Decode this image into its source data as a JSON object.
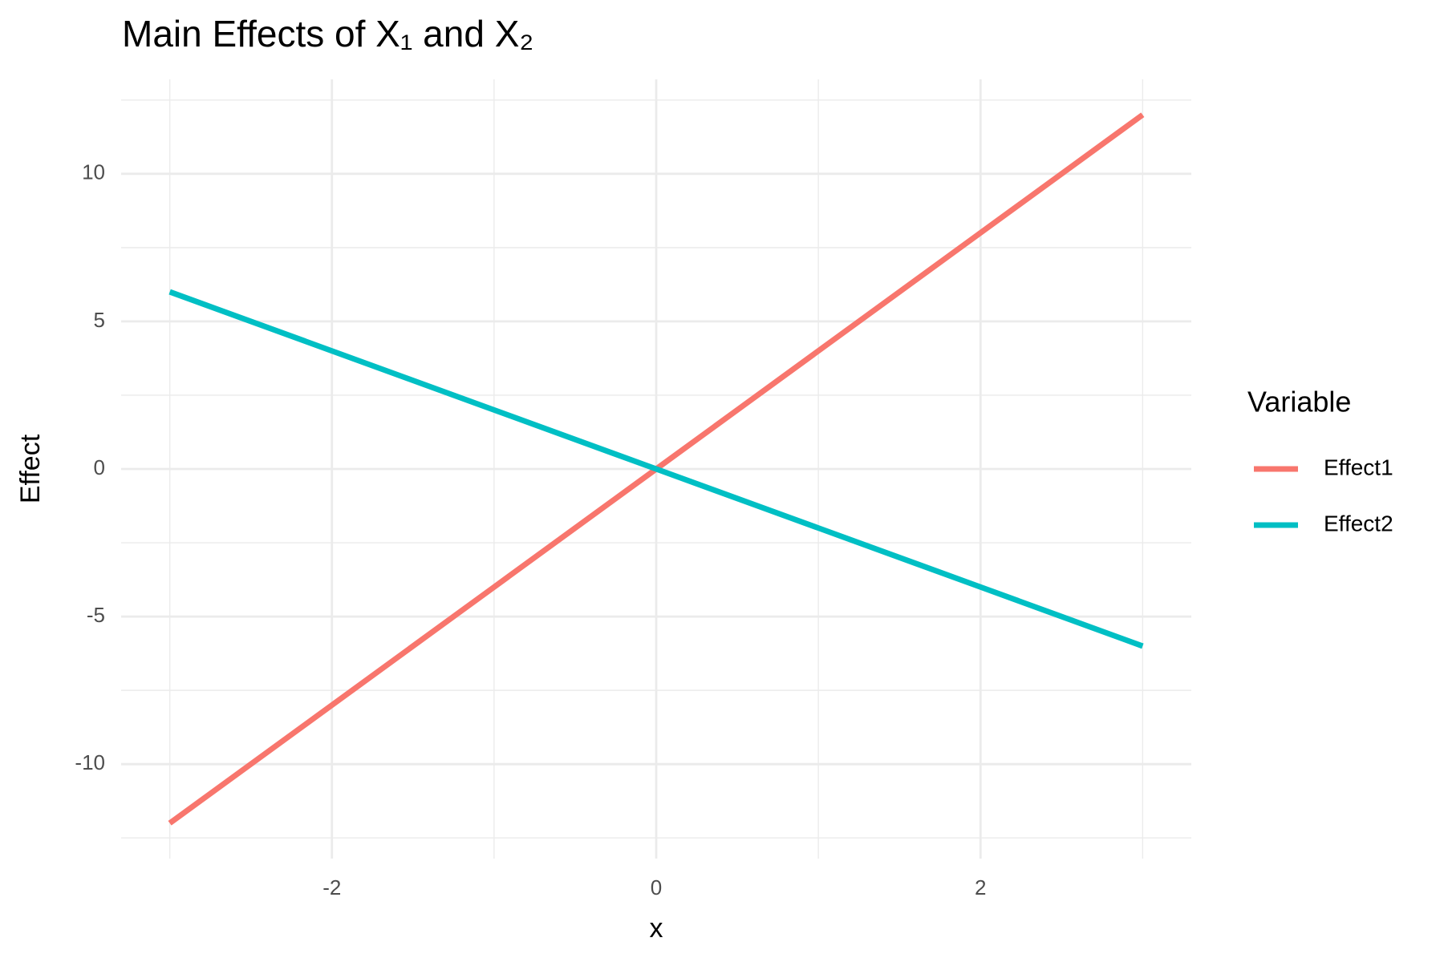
{
  "chart_data": {
    "type": "line",
    "title": "Main Effects of X₁ and X₂",
    "x_label": "x",
    "y_label": "Effect",
    "x": [
      -3,
      -2,
      -1,
      0,
      1,
      2,
      3
    ],
    "series": [
      {
        "name": "Effect1",
        "color": "#F8766D",
        "values": [
          -12,
          -8,
          -4,
          0,
          4,
          8,
          12
        ]
      },
      {
        "name": "Effect2",
        "color": "#00BFC4",
        "values": [
          6,
          4,
          2,
          0,
          -2,
          -4,
          -6
        ]
      }
    ],
    "xlim": [
      -3.3,
      3.3
    ],
    "xticks": [
      -2,
      0,
      2
    ],
    "x_minor_ticks": [
      -3,
      -1,
      1,
      3
    ],
    "ylim": [
      -13.2,
      13.2
    ],
    "yticks": [
      -10,
      -5,
      0,
      5,
      10
    ],
    "y_minor_ticks": [
      -12.5,
      -7.5,
      -2.5,
      2.5,
      7.5,
      12.5
    ],
    "grid": true,
    "legend_title": "Variable",
    "legend_position": "right"
  }
}
